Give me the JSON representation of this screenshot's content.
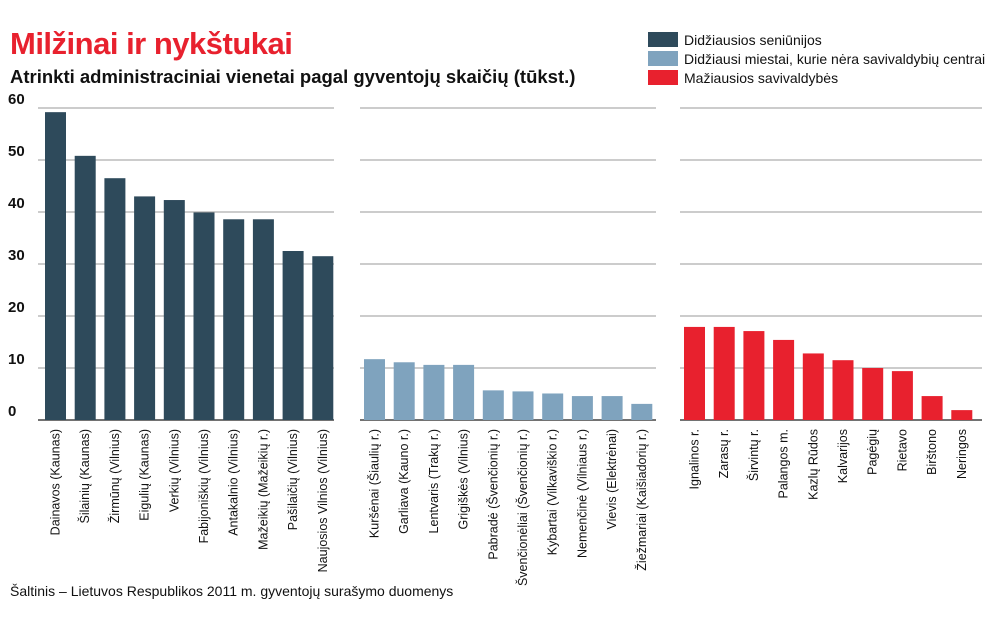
{
  "title": "Milžinai ir nykštukai",
  "subtitle": "Atrinkti administraciniai vienetai pagal gyventojų skaičių (tūkst.)",
  "source": "Šaltinis – Lietuvos Respublikos 2011 m. gyventojų surašymo duomenys",
  "chart_data": {
    "type": "bar",
    "title": "Milžinai ir nykštukai",
    "subtitle": "Atrinkti administraciniai vienetai pagal gyventojų skaičių (tūkst.)",
    "ylim": [
      0,
      60
    ],
    "yticks": [
      "0",
      "10",
      "20",
      "30",
      "40",
      "50",
      "60"
    ],
    "grid": true,
    "legend_position": "top-right",
    "series": [
      {
        "name": "Didžiausios seniūnijos",
        "color": "#2e4a5b",
        "categories": [
          "Dainavos (Kaunas)",
          "Šilainių (Kaunas)",
          "Žirmūnų (Vilnius)",
          "Eigulių (Kaunas)",
          "Verkių (Vilnius)",
          "Fabijoniškių (Vilnius)",
          "Antakalnio (Vilnius)",
          "Mažeikių (Mažeikių r.)",
          "Pašilaičių (Vilnius)",
          "Naujosios Vilnios (Vilnius)"
        ],
        "values": [
          59.2,
          50.8,
          46.5,
          43.0,
          42.3,
          39.9,
          38.6,
          38.6,
          32.5,
          31.5
        ]
      },
      {
        "name": "Didžiausi miestai, kurie nėra savivaldybių centrai",
        "color": "#7fa3be",
        "categories": [
          "Kuršėnai (Šiaulių r.)",
          "Garliava (Kauno r.)",
          "Lentvaris (Trakų r.)",
          "Grigiškės (Vilnius)",
          "Pabradė (Švenčionių r.)",
          "Švenčionėliai (Švenčionių r.)",
          "Kybartai (Vilkaviškio r.)",
          "Nemenčinė (Vilniaus r.)",
          "Vievis (Elektrėnai)",
          "Žiežmariai (Kaišiadorių r.)"
        ],
        "values": [
          11.7,
          11.1,
          10.6,
          10.6,
          5.7,
          5.5,
          5.1,
          4.6,
          4.6,
          3.1
        ]
      },
      {
        "name": "Mažiausios savivaldybės",
        "color": "#e8212e",
        "categories": [
          "Ignalinos r.",
          "Zarasų r.",
          "Širvintų r.",
          "Palangos m.",
          "Kazlų Rūdos",
          "Kalvarijos",
          "Pagėgių",
          "Rietavo",
          "Birštono",
          "Neringos"
        ],
        "values": [
          17.9,
          17.9,
          17.1,
          15.4,
          12.8,
          11.5,
          10.0,
          9.4,
          4.6,
          1.9
        ]
      }
    ]
  }
}
